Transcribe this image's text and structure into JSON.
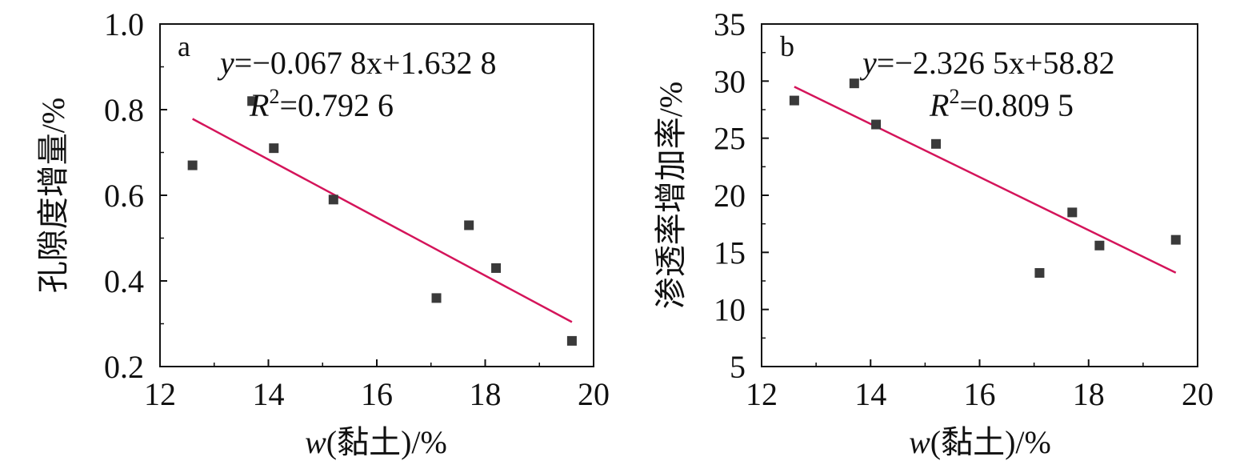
{
  "chart_data": [
    {
      "type": "scatter",
      "panel_label": "a",
      "xlabel_var": "w",
      "xlabel_rest": "(黏土)/%",
      "ylabel": "孔隙度增量/%",
      "xlim": [
        12,
        20
      ],
      "ylim": [
        0.2,
        1.0
      ],
      "xticks": [
        "12",
        "14",
        "16",
        "18",
        "20"
      ],
      "yticks": [
        "0.2",
        "0.4",
        "0.6",
        "0.8",
        "1.0"
      ],
      "points": [
        {
          "x": 12.6,
          "y": 0.67
        },
        {
          "x": 13.7,
          "y": 0.82
        },
        {
          "x": 14.1,
          "y": 0.71
        },
        {
          "x": 15.2,
          "y": 0.59
        },
        {
          "x": 17.1,
          "y": 0.36
        },
        {
          "x": 17.7,
          "y": 0.53
        },
        {
          "x": 18.2,
          "y": 0.43
        },
        {
          "x": 19.6,
          "y": 0.26
        }
      ],
      "fit": {
        "slope": -0.0678,
        "intercept": 1.6328,
        "x_range": [
          12.6,
          19.6
        ]
      },
      "equation": {
        "y": "y",
        "rest": "=−0.067 8x+1.632 8"
      },
      "r2": {
        "R": "R",
        "sup": "2",
        "rest": "=0.792 6"
      },
      "fit_color": "#d4145a",
      "marker_color": "#3a3a3a"
    },
    {
      "type": "scatter",
      "panel_label": "b",
      "xlabel_var": "w",
      "xlabel_rest": "(黏土)/%",
      "ylabel": "渗透率增加率/%",
      "xlim": [
        12,
        20
      ],
      "ylim": [
        5,
        35
      ],
      "xticks": [
        "12",
        "14",
        "16",
        "18",
        "20"
      ],
      "yticks": [
        "5",
        "10",
        "15",
        "20",
        "25",
        "30",
        "35"
      ],
      "points": [
        {
          "x": 12.6,
          "y": 28.3
        },
        {
          "x": 13.7,
          "y": 29.8
        },
        {
          "x": 14.1,
          "y": 26.2
        },
        {
          "x": 15.2,
          "y": 24.5
        },
        {
          "x": 17.1,
          "y": 13.2
        },
        {
          "x": 17.7,
          "y": 18.5
        },
        {
          "x": 18.2,
          "y": 15.6
        },
        {
          "x": 19.6,
          "y": 16.1
        }
      ],
      "fit": {
        "slope": -2.3265,
        "intercept": 58.82,
        "x_range": [
          12.6,
          19.6
        ]
      },
      "equation": {
        "y": "y",
        "rest": "=−2.326 5x+58.82"
      },
      "r2": {
        "R": "R",
        "sup": "2",
        "rest": "=0.809 5"
      },
      "fit_color": "#d4145a",
      "marker_color": "#3a3a3a"
    }
  ]
}
